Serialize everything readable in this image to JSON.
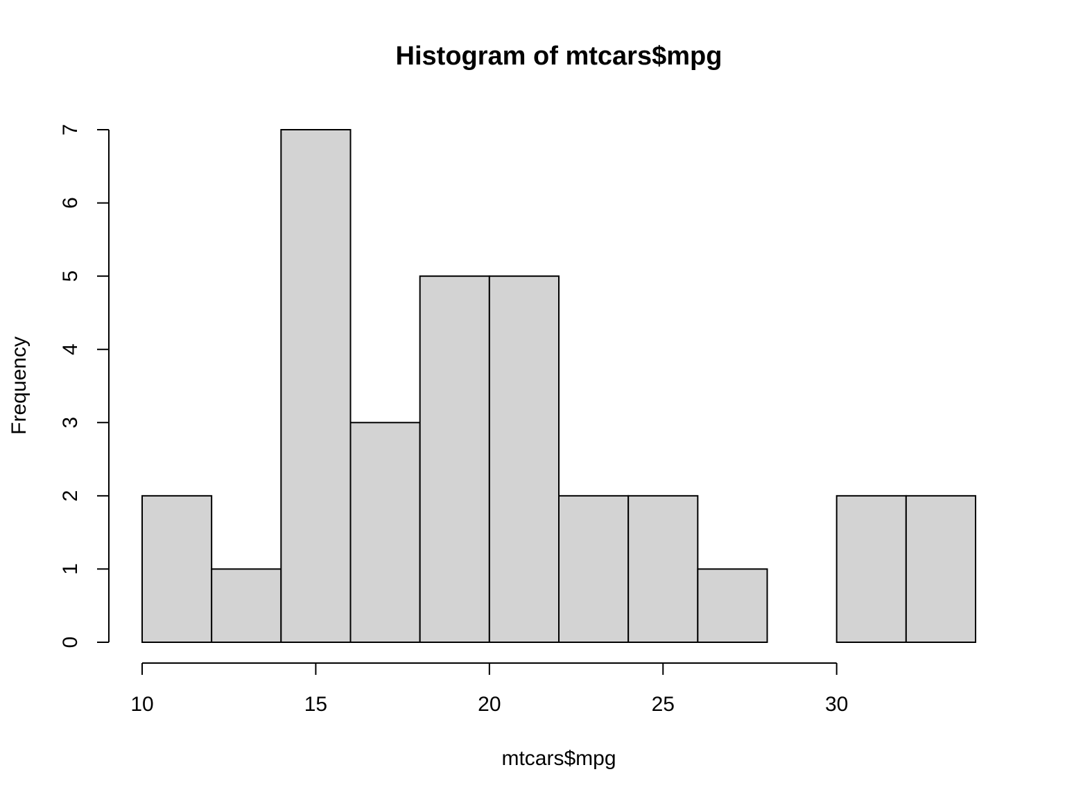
{
  "chart_data": {
    "type": "bar",
    "title": "Histogram of mtcars$mpg",
    "xlabel": "mtcars$mpg",
    "ylabel": "Frequency",
    "bins": [
      {
        "from": 10,
        "to": 12,
        "count": 2
      },
      {
        "from": 12,
        "to": 14,
        "count": 1
      },
      {
        "from": 14,
        "to": 16,
        "count": 7
      },
      {
        "from": 16,
        "to": 18,
        "count": 3
      },
      {
        "from": 18,
        "to": 20,
        "count": 5
      },
      {
        "from": 20,
        "to": 22,
        "count": 5
      },
      {
        "from": 22,
        "to": 24,
        "count": 2
      },
      {
        "from": 24,
        "to": 26,
        "count": 2
      },
      {
        "from": 26,
        "to": 28,
        "count": 1
      },
      {
        "from": 28,
        "to": 30,
        "count": 0
      },
      {
        "from": 30,
        "to": 32,
        "count": 2
      },
      {
        "from": 32,
        "to": 34,
        "count": 2
      }
    ],
    "x_ticks": [
      "10",
      "15",
      "20",
      "25",
      "30"
    ],
    "y_ticks": [
      "0",
      "1",
      "2",
      "3",
      "4",
      "5",
      "6",
      "7"
    ],
    "xlim": [
      10,
      34
    ],
    "ylim": [
      0,
      7
    ],
    "grid": false,
    "bar_color": "#d3d3d3",
    "edge_color": "#000000"
  }
}
